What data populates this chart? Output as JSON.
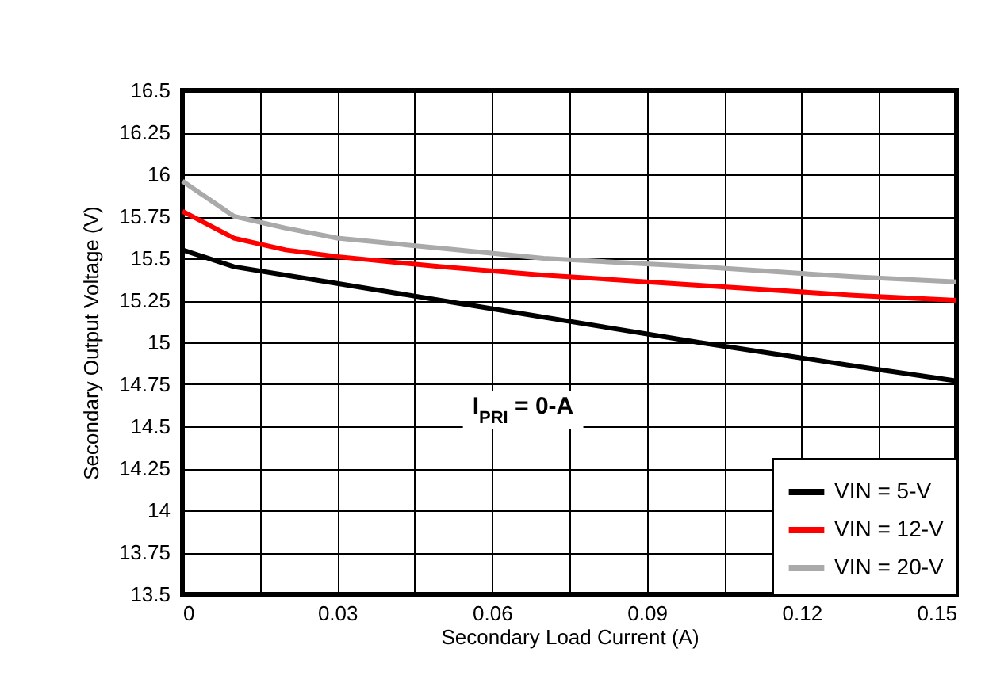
{
  "chart_data": {
    "type": "line",
    "xlabel": "Secondary Load Current (A)",
    "ylabel": "Secondary Output Voltage (V)",
    "xlim": [
      0,
      0.15
    ],
    "xticks": [
      0,
      {
        "value": 0.015,
        "label": null
      },
      0.03,
      {
        "value": 0.045,
        "label": null
      },
      0.06,
      {
        "value": 0.075,
        "label": null
      },
      0.09,
      {
        "value": 0.105,
        "label": null
      },
      0.12,
      {
        "value": 0.135,
        "label": null
      },
      0.15
    ],
    "ylim": [
      13.5,
      16.5
    ],
    "yticks": [
      13.5,
      13.75,
      14,
      14.25,
      14.5,
      14.75,
      15,
      15.25,
      15.5,
      15.75,
      16,
      16.25,
      16.5
    ],
    "x": [
      0,
      0.01,
      0.02,
      0.03,
      0.05,
      0.07,
      0.1,
      0.13,
      0.15
    ],
    "series": [
      {
        "name": "VIN = 5-V",
        "color": "#000000",
        "values": [
          15.55,
          15.45,
          15.4,
          15.35,
          15.25,
          15.15,
          15.0,
          14.86,
          14.77
        ]
      },
      {
        "name": "VIN = 12-V",
        "color": "#ff0000",
        "values": [
          15.78,
          15.62,
          15.55,
          15.51,
          15.45,
          15.4,
          15.34,
          15.28,
          15.25
        ]
      },
      {
        "name": "VIN = 20-V",
        "color": "#aaaaaa",
        "values": [
          15.96,
          15.75,
          15.68,
          15.62,
          15.56,
          15.5,
          15.45,
          15.39,
          15.36
        ]
      }
    ],
    "annotations": [
      "I$_{PRI}$ = 0-A"
    ],
    "grid": true,
    "legend": "bottom right",
    "line_style": "solid"
  }
}
